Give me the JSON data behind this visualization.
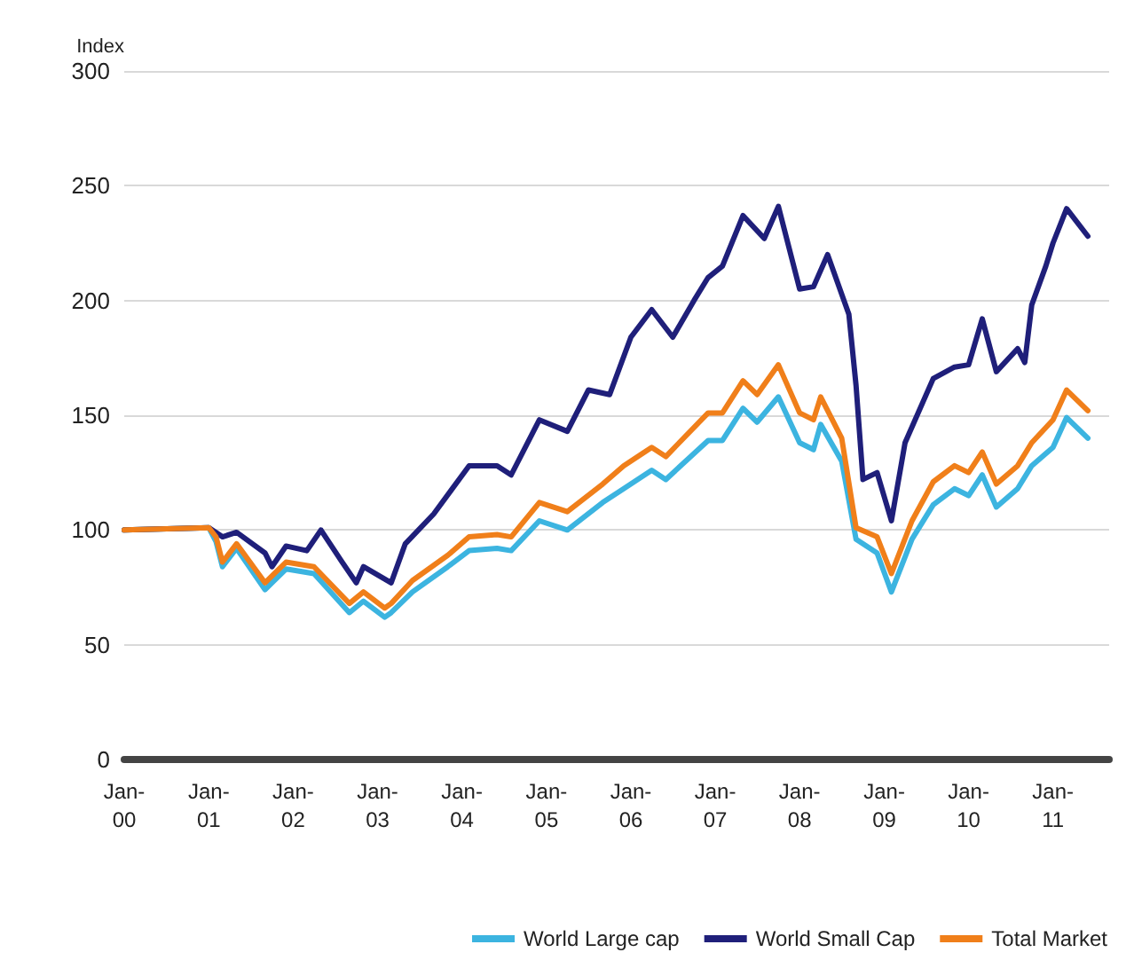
{
  "chart_data": {
    "type": "line",
    "ylabel": "Index",
    "xlim": [
      "2000-01",
      "2011-09"
    ],
    "xticks": [
      {
        "value": "2000-01",
        "label": "Jan-\n00"
      },
      {
        "value": "2001-01",
        "label": "Jan-\n01"
      },
      {
        "value": "2002-01",
        "label": "Jan-\n02"
      },
      {
        "value": "2003-01",
        "label": "Jan-\n03"
      },
      {
        "value": "2004-01",
        "label": "Jan-\n04"
      },
      {
        "value": "2005-01",
        "label": "Jan-\n05"
      },
      {
        "value": "2006-01",
        "label": "Jan-\n06"
      },
      {
        "value": "2007-01",
        "label": "Jan-\n07"
      },
      {
        "value": "2008-01",
        "label": "Jan-\n08"
      },
      {
        "value": "2009-01",
        "label": "Jan-\n09"
      },
      {
        "value": "2010-01",
        "label": "Jan-\n10"
      },
      {
        "value": "2011-01",
        "label": "Jan-\n11"
      }
    ],
    "ylim": [
      0,
      300
    ],
    "yticks": [
      0,
      50,
      100,
      150,
      200,
      250,
      300
    ],
    "grid": "y",
    "legend": "bottom right",
    "marker": "none",
    "line_style": "solid",
    "series": [
      {
        "name": "World Large cap",
        "color": "#3cb4e0",
        "x": [
          "2000-01",
          "2001-01",
          "2001-02",
          "2001-03",
          "2001-05",
          "2001-09",
          "2001-10",
          "2001-12",
          "2002-04",
          "2002-09",
          "2002-11",
          "2003-02",
          "2003-03",
          "2003-06",
          "2003-11",
          "2004-02",
          "2004-06",
          "2004-08",
          "2004-12",
          "2005-04",
          "2005-09",
          "2005-12",
          "2006-04",
          "2006-06",
          "2006-12",
          "2007-02",
          "2007-05",
          "2007-07",
          "2007-10",
          "2008-01",
          "2008-03",
          "2008-04",
          "2008-07",
          "2008-09",
          "2008-12",
          "2009-02",
          "2009-05",
          "2009-08",
          "2009-11",
          "2010-01",
          "2010-03",
          "2010-05",
          "2010-08",
          "2010-10",
          "2011-01",
          "2011-03",
          "2011-06"
        ],
        "values": [
          100,
          101,
          95,
          84,
          92,
          74,
          77,
          83,
          81,
          64,
          69,
          62,
          64,
          73,
          84,
          91,
          92,
          91,
          104,
          100,
          112,
          118,
          126,
          122,
          139,
          139,
          153,
          147,
          158,
          138,
          135,
          146,
          130,
          96,
          90,
          73,
          96,
          111,
          118,
          115,
          124,
          110,
          118,
          128,
          136,
          149,
          140
        ]
      },
      {
        "name": "World Small Cap",
        "color": "#1f1f7a",
        "x": [
          "2000-01",
          "2001-01",
          "2001-03",
          "2001-05",
          "2001-09",
          "2001-10",
          "2001-12",
          "2002-03",
          "2002-05",
          "2002-08",
          "2002-10",
          "2002-11",
          "2003-03",
          "2003-05",
          "2003-09",
          "2004-02",
          "2004-06",
          "2004-08",
          "2004-12",
          "2005-04",
          "2005-07",
          "2005-10",
          "2006-01",
          "2006-04",
          "2006-07",
          "2006-10",
          "2006-12",
          "2007-02",
          "2007-05",
          "2007-08",
          "2007-10",
          "2008-01",
          "2008-03",
          "2008-05",
          "2008-08",
          "2008-09",
          "2008-10",
          "2008-12",
          "2009-02",
          "2009-04",
          "2009-08",
          "2009-11",
          "2010-01",
          "2010-03",
          "2010-05",
          "2010-08",
          "2010-09",
          "2010-10",
          "2010-12",
          "2011-01",
          "2011-03",
          "2011-06"
        ],
        "values": [
          100,
          101,
          97,
          99,
          90,
          84,
          93,
          91,
          100,
          86,
          77,
          84,
          77,
          94,
          107,
          128,
          128,
          124,
          148,
          143,
          161,
          159,
          184,
          196,
          184,
          200,
          210,
          215,
          237,
          227,
          241,
          205,
          206,
          220,
          194,
          163,
          122,
          125,
          104,
          138,
          166,
          171,
          172,
          192,
          169,
          179,
          173,
          198,
          215,
          225,
          240,
          228
        ]
      },
      {
        "name": "Total Market",
        "color": "#f07f1a",
        "x": [
          "2000-01",
          "2001-01",
          "2001-02",
          "2001-03",
          "2001-05",
          "2001-09",
          "2001-10",
          "2001-12",
          "2002-04",
          "2002-09",
          "2002-11",
          "2003-02",
          "2003-03",
          "2003-06",
          "2003-11",
          "2004-02",
          "2004-06",
          "2004-08",
          "2004-12",
          "2005-04",
          "2005-09",
          "2005-12",
          "2006-04",
          "2006-06",
          "2006-12",
          "2007-02",
          "2007-05",
          "2007-07",
          "2007-10",
          "2008-01",
          "2008-03",
          "2008-04",
          "2008-07",
          "2008-09",
          "2008-12",
          "2009-02",
          "2009-05",
          "2009-08",
          "2009-11",
          "2010-01",
          "2010-03",
          "2010-05",
          "2010-08",
          "2010-10",
          "2011-01",
          "2011-03",
          "2011-06"
        ],
        "values": [
          100,
          101,
          97,
          86,
          94,
          77,
          80,
          86,
          84,
          68,
          73,
          66,
          68,
          78,
          89,
          97,
          98,
          97,
          112,
          108,
          120,
          128,
          136,
          132,
          151,
          151,
          165,
          159,
          172,
          151,
          148,
          158,
          140,
          101,
          97,
          81,
          104,
          121,
          128,
          125,
          134,
          120,
          128,
          138,
          148,
          161,
          152
        ]
      }
    ]
  }
}
